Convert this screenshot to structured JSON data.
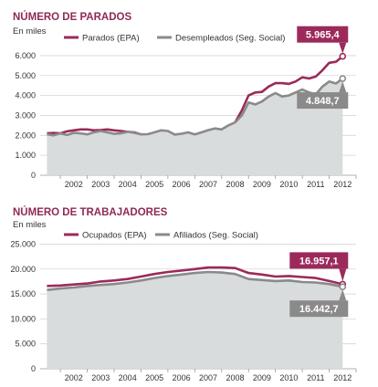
{
  "chart_data": [
    {
      "type": "line",
      "title": "NÚMERO DE PARADOS",
      "unit_label": "En miles",
      "ylim": [
        0,
        6500
      ],
      "yticks": [
        0,
        1000,
        2000,
        3000,
        4000,
        5000,
        6000
      ],
      "ytick_labels": [
        "0",
        "1.000",
        "2.000",
        "3.000",
        "4.000",
        "5.000",
        "6.000"
      ],
      "xlim": [
        2001.25,
        2013.0
      ],
      "xticks": [
        "2002",
        "2003",
        "2004",
        "2005",
        "2006",
        "2007",
        "2008",
        "2009",
        "2010",
        "2011",
        "2012"
      ],
      "grid": true,
      "legend_position": "top",
      "series": [
        {
          "name": "Parados (EPA)",
          "color": "#9b2a5b",
          "style": "line",
          "end_label": "5.965,4",
          "x": [
            2001.5,
            2001.75,
            2002.0,
            2002.25,
            2002.5,
            2002.75,
            2003.0,
            2003.25,
            2003.5,
            2003.75,
            2004.0,
            2004.25,
            2004.5,
            2004.75,
            2005.0,
            2005.25,
            2005.5,
            2005.75,
            2006.0,
            2006.25,
            2006.5,
            2006.75,
            2007.0,
            2007.25,
            2007.5,
            2007.75,
            2008.0,
            2008.25,
            2008.5,
            2008.75,
            2009.0,
            2009.25,
            2009.5,
            2009.75,
            2010.0,
            2010.25,
            2010.5,
            2010.75,
            2011.0,
            2011.25,
            2011.5,
            2011.75,
            2012.0,
            2012.25,
            2012.5
          ],
          "values": [
            2100,
            2120,
            2100,
            2200,
            2250,
            2300,
            2300,
            2250,
            2270,
            2300,
            2250,
            2220,
            2180,
            2150,
            2050,
            1950,
            1780,
            1850,
            1950,
            1900,
            1820,
            1850,
            1850,
            1760,
            1800,
            1950,
            2200,
            2400,
            2650,
            3250,
            4000,
            4150,
            4180,
            4450,
            4620,
            4620,
            4580,
            4700,
            4910,
            4850,
            4950,
            5270,
            5640,
            5690,
            5965
          ]
        },
        {
          "name": "Desempleados (Seg. Social)",
          "color": "#8a8a8a",
          "style": "area",
          "end_label": "4.848,7",
          "x": [
            2001.5,
            2001.75,
            2002.0,
            2002.25,
            2002.5,
            2002.75,
            2003.0,
            2003.25,
            2003.5,
            2003.75,
            2004.0,
            2004.25,
            2004.5,
            2004.75,
            2005.0,
            2005.25,
            2005.5,
            2005.75,
            2006.0,
            2006.25,
            2006.5,
            2006.75,
            2007.0,
            2007.25,
            2007.5,
            2007.75,
            2008.0,
            2008.25,
            2008.5,
            2008.75,
            2009.0,
            2009.25,
            2009.5,
            2009.75,
            2010.0,
            2010.25,
            2010.5,
            2010.75,
            2011.0,
            2011.25,
            2011.5,
            2011.75,
            2012.0,
            2012.25,
            2012.5
          ],
          "values": [
            2060,
            2000,
            2100,
            2020,
            2130,
            2100,
            2050,
            2150,
            2220,
            2150,
            2080,
            2100,
            2180,
            2130,
            2050,
            2060,
            2150,
            2250,
            2220,
            2040,
            2080,
            2150,
            2050,
            2150,
            2260,
            2350,
            2300,
            2500,
            2650,
            3000,
            3650,
            3550,
            3700,
            3950,
            4120,
            3950,
            4000,
            4150,
            4300,
            4150,
            4050,
            4450,
            4700,
            4600,
            4849
          ]
        }
      ]
    },
    {
      "type": "line",
      "title": "NÚMERO DE TRABAJADORES",
      "unit_label": "En miles",
      "ylim": [
        0,
        26000
      ],
      "yticks": [
        0,
        5000,
        10000,
        15000,
        20000,
        25000
      ],
      "ytick_labels": [
        "0",
        "5.000",
        "10.000",
        "15.000",
        "20.000",
        "25.000"
      ],
      "xlim": [
        2001.25,
        2013.0
      ],
      "xticks": [
        "2002",
        "2003",
        "2004",
        "2005",
        "2006",
        "2007",
        "2008",
        "2009",
        "2010",
        "2011",
        "2012"
      ],
      "grid": true,
      "legend_position": "top",
      "series": [
        {
          "name": "Ocupados (EPA)",
          "color": "#9b2a5b",
          "style": "line",
          "end_label": "16.957,1",
          "x": [
            2001.5,
            2002.0,
            2002.5,
            2003.0,
            2003.5,
            2004.0,
            2004.5,
            2005.0,
            2005.5,
            2006.0,
            2006.5,
            2007.0,
            2007.5,
            2008.0,
            2008.5,
            2009.0,
            2009.5,
            2010.0,
            2010.5,
            2011.0,
            2011.5,
            2012.0,
            2012.5
          ],
          "values": [
            16600,
            16700,
            16900,
            17100,
            17500,
            17700,
            18000,
            18500,
            19000,
            19400,
            19700,
            20000,
            20300,
            20300,
            20200,
            19200,
            18900,
            18500,
            18600,
            18400,
            18200,
            17600,
            16957
          ]
        },
        {
          "name": "Afiliados (Seg. Social)",
          "color": "#8a8a8a",
          "style": "area",
          "end_label": "16.442,7",
          "x": [
            2001.5,
            2002.0,
            2002.5,
            2003.0,
            2003.5,
            2004.0,
            2004.5,
            2005.0,
            2005.5,
            2006.0,
            2006.5,
            2007.0,
            2007.5,
            2008.0,
            2008.5,
            2009.0,
            2009.5,
            2010.0,
            2010.5,
            2011.0,
            2011.5,
            2012.0,
            2012.5
          ],
          "values": [
            15800,
            16100,
            16300,
            16600,
            16800,
            17000,
            17300,
            17700,
            18200,
            18600,
            18900,
            19200,
            19400,
            19300,
            19000,
            18000,
            17800,
            17600,
            17700,
            17400,
            17300,
            17000,
            16443
          ]
        }
      ]
    }
  ]
}
